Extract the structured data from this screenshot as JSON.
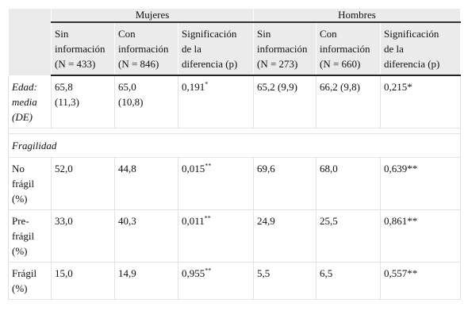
{
  "table": {
    "groups": [
      "Mujeres",
      "Hombres"
    ],
    "columns": [
      [
        "Sin",
        "información",
        "(N = 433)"
      ],
      [
        "Con",
        "información",
        "(N = 846)"
      ],
      [
        "Significación",
        "de la",
        "diferencia (p)"
      ],
      [
        "Sin",
        "información",
        "(N = 273)"
      ],
      [
        "Con",
        "información",
        "(N = 660)"
      ],
      [
        "Significación",
        "de la",
        "diferencia (p)"
      ]
    ],
    "rows": [
      {
        "label": [
          "Edad:",
          "media",
          "(DE)"
        ],
        "cells": [
          {
            "lines": [
              "65,8",
              "(11,3)"
            ]
          },
          {
            "lines": [
              "65,0",
              "(10,8)"
            ]
          },
          {
            "lines": [
              "0,191"
            ],
            "sup": "*"
          },
          {
            "lines": [
              "65,2 (9,9)"
            ]
          },
          {
            "lines": [
              "66,2 (9,8)"
            ]
          },
          {
            "lines": [
              "0,215*"
            ]
          }
        ]
      },
      {
        "section": "Fragilidad"
      },
      {
        "label": [
          "No",
          "frágil",
          "(%)"
        ],
        "cells": [
          {
            "lines": [
              "52,0"
            ]
          },
          {
            "lines": [
              "44,8"
            ]
          },
          {
            "lines": [
              "0,015"
            ],
            "sup": "**"
          },
          {
            "lines": [
              "69,6"
            ]
          },
          {
            "lines": [
              "68,0"
            ]
          },
          {
            "lines": [
              "0,639**"
            ]
          }
        ]
      },
      {
        "label": [
          "Pre-",
          "frágil",
          "(%)"
        ],
        "cells": [
          {
            "lines": [
              "33,0"
            ]
          },
          {
            "lines": [
              "40,3"
            ]
          },
          {
            "lines": [
              "0,011"
            ],
            "sup": "**"
          },
          {
            "lines": [
              "24,9"
            ]
          },
          {
            "lines": [
              "25,5"
            ]
          },
          {
            "lines": [
              "0,861**"
            ]
          }
        ]
      },
      {
        "label": [
          "Frágil",
          "(%)"
        ],
        "cells": [
          {
            "lines": [
              "15,0"
            ]
          },
          {
            "lines": [
              "14,9"
            ]
          },
          {
            "lines": [
              "0,955"
            ],
            "sup": "**"
          },
          {
            "lines": [
              "5,5"
            ]
          },
          {
            "lines": [
              "6,5"
            ]
          },
          {
            "lines": [
              "0,557**"
            ]
          }
        ]
      }
    ]
  }
}
